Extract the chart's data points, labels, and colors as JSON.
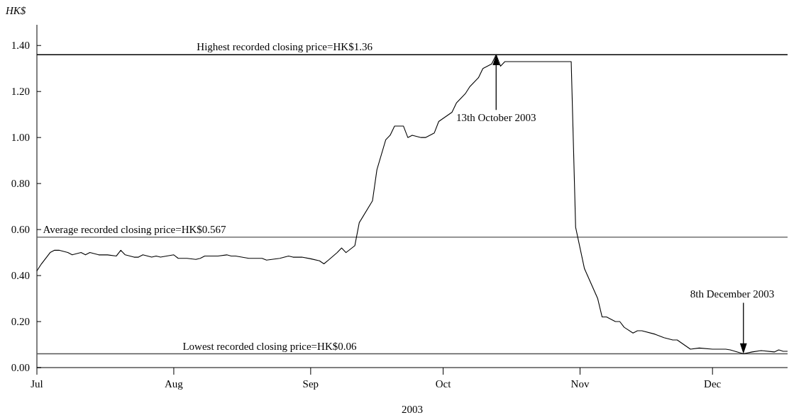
{
  "chart_data": {
    "type": "line",
    "xlabel": "2003",
    "ylabel": "HK$",
    "x": [
      "2003-07-01",
      "2003-07-02",
      "2003-07-04",
      "2003-07-05",
      "2003-07-06",
      "2003-07-08",
      "2003-07-09",
      "2003-07-11",
      "2003-07-12",
      "2003-07-13",
      "2003-07-15",
      "2003-07-17",
      "2003-07-19",
      "2003-07-20",
      "2003-07-21",
      "2003-07-23",
      "2003-07-24",
      "2003-07-25",
      "2003-07-27",
      "2003-07-28",
      "2003-07-29",
      "2003-08-01",
      "2003-08-02",
      "2003-08-04",
      "2003-08-06",
      "2003-08-07",
      "2003-08-08",
      "2003-08-11",
      "2003-08-13",
      "2003-08-14",
      "2003-08-15",
      "2003-08-18",
      "2003-08-21",
      "2003-08-22",
      "2003-08-25",
      "2003-08-27",
      "2003-08-28",
      "2003-08-30",
      "2003-09-01",
      "2003-09-03",
      "2003-09-04",
      "2003-09-05",
      "2003-09-07",
      "2003-09-08",
      "2003-09-09",
      "2003-09-11",
      "2003-09-12",
      "2003-09-15",
      "2003-09-16",
      "2003-09-18",
      "2003-09-19",
      "2003-09-20",
      "2003-09-22",
      "2003-09-23",
      "2003-09-24",
      "2003-09-26",
      "2003-09-27",
      "2003-09-29",
      "2003-09-30",
      "2003-10-03",
      "2003-10-04",
      "2003-10-06",
      "2003-10-07",
      "2003-10-09",
      "2003-10-10",
      "2003-10-12",
      "2003-10-13",
      "2003-10-14",
      "2003-10-15",
      "2003-10-30",
      "2003-10-31",
      "2003-11-02",
      "2003-11-05",
      "2003-11-06",
      "2003-11-07",
      "2003-11-09",
      "2003-11-10",
      "2003-11-11",
      "2003-11-13",
      "2003-11-14",
      "2003-11-15",
      "2003-11-18",
      "2003-11-20",
      "2003-11-22",
      "2003-11-23",
      "2003-11-26",
      "2003-11-28",
      "2003-12-01",
      "2003-12-04",
      "2003-12-05",
      "2003-12-08",
      "2003-12-10",
      "2003-12-12",
      "2003-12-15",
      "2003-12-16",
      "2003-12-17",
      "2003-12-18"
    ],
    "series": [
      {
        "color": "#000000",
        "values": [
          0.42,
          0.45,
          0.5,
          0.51,
          0.51,
          0.5,
          0.49,
          0.5,
          0.49,
          0.5,
          0.49,
          0.49,
          0.485,
          0.51,
          0.49,
          0.48,
          0.48,
          0.49,
          0.48,
          0.485,
          0.48,
          0.49,
          0.475,
          0.475,
          0.47,
          0.475,
          0.485,
          0.485,
          0.49,
          0.485,
          0.485,
          0.475,
          0.475,
          0.467,
          0.475,
          0.485,
          0.48,
          0.48,
          0.473,
          0.464,
          0.451,
          0.467,
          0.5,
          0.52,
          0.5,
          0.53,
          0.63,
          0.725,
          0.86,
          0.99,
          1.01,
          1.05,
          1.05,
          1.0,
          1.01,
          1.0,
          1.0,
          1.02,
          1.07,
          1.11,
          1.15,
          1.19,
          1.22,
          1.26,
          1.3,
          1.32,
          1.36,
          1.31,
          1.33,
          1.33,
          0.61,
          0.43,
          0.3,
          0.22,
          0.22,
          0.2,
          0.2,
          0.175,
          0.15,
          0.16,
          0.16,
          0.145,
          0.13,
          0.12,
          0.12,
          0.08,
          0.085,
          0.08,
          0.08,
          0.077,
          0.06,
          0.068,
          0.074,
          0.068,
          0.077,
          0.071,
          0.071
        ]
      }
    ],
    "xlim": [
      "2003-07-01",
      "2003-12-18"
    ],
    "xticks": [
      {
        "value": "2003-07-01",
        "label": "Jul"
      },
      {
        "value": "2003-08-01",
        "label": "Aug"
      },
      {
        "value": "2003-09-01",
        "label": "Sep"
      },
      {
        "value": "2003-10-01",
        "label": "Oct"
      },
      {
        "value": "2003-11-01",
        "label": "Nov"
      },
      {
        "value": "2003-12-01",
        "label": "Dec"
      }
    ],
    "ylim": [
      0,
      1.49
    ],
    "yticks": [
      {
        "value": 0,
        "label": "0.00"
      },
      {
        "value": 0.2,
        "label": "0.20"
      },
      {
        "value": 0.4,
        "label": "0.40"
      },
      {
        "value": 0.6,
        "label": "0.60"
      },
      {
        "value": 0.8,
        "label": "0.80"
      },
      {
        "value": 1.0,
        "label": "1.00"
      },
      {
        "value": 1.2,
        "label": "1.20"
      },
      {
        "value": 1.4,
        "label": "1.40"
      }
    ],
    "ref_lines": [
      {
        "axis": "y",
        "value": 1.36,
        "label": "Highest recorded closing price=HK$1.36",
        "color": "#000000"
      },
      {
        "axis": "y",
        "value": 0.567,
        "label": "Average recorded closing price=HK$0.567",
        "color": "#555555"
      },
      {
        "axis": "y",
        "value": 0.06,
        "label": "Lowest recorded closing price=HK$0.06",
        "color": "#555555"
      }
    ],
    "annotations": [
      "13th October 2003",
      "8th December 2003"
    ],
    "grid": false,
    "marker": "none",
    "line_style": "solid"
  }
}
